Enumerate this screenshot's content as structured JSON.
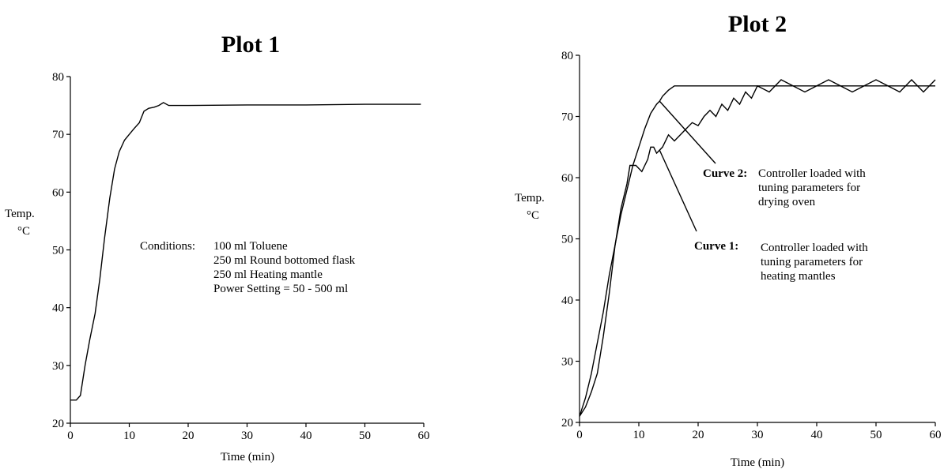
{
  "chart_data": [
    {
      "type": "line",
      "title": "Plot 1",
      "xlabel": "Time (min)",
      "ylabel_line1": "Temp.",
      "ylabel_line2": "°C",
      "xlim": [
        0,
        60
      ],
      "ylim": [
        20,
        80
      ],
      "xticks": [
        0,
        10,
        20,
        30,
        40,
        50,
        60
      ],
      "yticks": [
        20,
        30,
        40,
        50,
        60,
        70,
        80
      ],
      "grid": false,
      "annotation": {
        "label": "Conditions:",
        "lines": [
          "100 ml Toluene",
          "250 ml Round bottomed flask",
          "250 ml Heating mantle",
          "Power Setting = 50 - 500 ml"
        ]
      },
      "series": [
        {
          "x": [
            0,
            1,
            1.7,
            2.5,
            3.3,
            4.2,
            5,
            5.8,
            6.7,
            7.5,
            8.3,
            9.2,
            10,
            10.8,
            11.7,
            12.5,
            13.3,
            14.2,
            15,
            15.8,
            16.7,
            20,
            30,
            40,
            50,
            59.5
          ],
          "y": [
            24,
            24,
            24.8,
            30,
            34.5,
            39,
            45,
            52,
            59,
            64,
            67,
            69,
            70,
            71,
            72,
            74,
            74.5,
            74.7,
            75,
            75.5,
            75,
            75,
            75.1,
            75.1,
            75.2,
            75.2
          ]
        }
      ]
    },
    {
      "type": "line",
      "title": "Plot 2",
      "xlabel": "Time (min)",
      "ylabel_line1": "Temp.",
      "ylabel_line2": "°C",
      "xlim": [
        0,
        60
      ],
      "ylim": [
        20,
        80
      ],
      "xticks": [
        0,
        10,
        20,
        30,
        40,
        50,
        60
      ],
      "yticks": [
        20,
        30,
        40,
        50,
        60,
        70,
        80
      ],
      "grid": false,
      "annotations": [
        {
          "label": "Curve 2:",
          "lines": [
            "Controller loaded with",
            "tuning parameters for",
            "drying oven"
          ],
          "arrow_to": [
            13.5,
            72.5
          ]
        },
        {
          "label": "Curve 1:",
          "lines": [
            "Controller loaded with",
            "tuning parameters for",
            "heating mantles"
          ],
          "arrow_to": [
            13.5,
            64.5
          ]
        }
      ],
      "series": [
        {
          "name": "Curve 2",
          "x": [
            0,
            1,
            2,
            3,
            4,
            5,
            6,
            7,
            8,
            9,
            10,
            11,
            12,
            13,
            13.5,
            14,
            15,
            16,
            20,
            30,
            40,
            50,
            60
          ],
          "y": [
            21,
            24,
            28,
            33,
            38,
            44,
            49,
            54,
            58,
            62,
            65,
            68,
            70.5,
            72,
            72.5,
            73.3,
            74.3,
            75,
            75,
            75,
            75,
            75,
            75
          ]
        },
        {
          "name": "Curve 1",
          "x": [
            0,
            1,
            2,
            3,
            4,
            5,
            6,
            7,
            8,
            8.5,
            9.5,
            10.5,
            11.5,
            12,
            12.5,
            13,
            14,
            15,
            16,
            17,
            18,
            19,
            20,
            21,
            22,
            23,
            24,
            25,
            26,
            27,
            28,
            29,
            30,
            32,
            34,
            36,
            38,
            40,
            42,
            44,
            46,
            48,
            50,
            52,
            54,
            56,
            58,
            60
          ],
          "y": [
            21,
            22.5,
            25,
            28,
            34,
            41,
            49,
            55,
            59,
            62,
            62,
            61,
            63,
            65,
            65,
            64,
            65,
            67,
            66,
            67,
            68,
            69,
            68.5,
            70,
            71,
            70,
            72,
            71,
            73,
            72,
            74,
            73,
            75,
            74,
            76,
            75,
            74,
            75,
            76,
            75,
            74,
            75,
            76,
            75,
            74,
            76,
            74,
            76
          ]
        }
      ]
    }
  ]
}
